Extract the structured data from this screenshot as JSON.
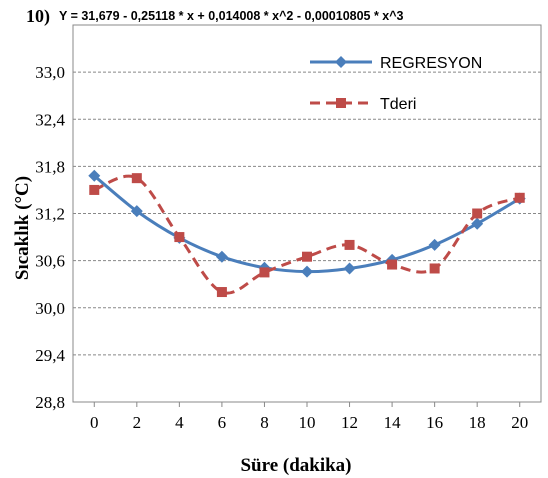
{
  "chart_data": {
    "type": "line",
    "label": "10)",
    "title": "Y = 31,679 - 0,25118 * x + 0,014008 * x^2 - 0,00010805 * x^3",
    "x_label": "Süre (dakika)",
    "y_label": "Sıcaklık (°C)",
    "x": [
      0,
      2,
      4,
      6,
      8,
      10,
      12,
      14,
      16,
      18,
      20
    ],
    "series": [
      {
        "name": "REGRESYON",
        "color": "#4a7ebb",
        "values": [
          31.68,
          31.23,
          30.89,
          30.65,
          30.51,
          30.46,
          30.5,
          30.61,
          30.8,
          31.07,
          31.39
        ]
      },
      {
        "name": "Tderi",
        "color": "#be4b48",
        "values": [
          31.5,
          31.65,
          30.9,
          30.2,
          30.45,
          30.65,
          30.8,
          30.55,
          30.5,
          31.2,
          31.4
        ]
      }
    ],
    "xlim": [
      -1,
      21
    ],
    "xticks": [
      0,
      2,
      4,
      6,
      8,
      10,
      12,
      14,
      16,
      18,
      20
    ],
    "ylim": [
      28.8,
      33.6
    ],
    "yticks": [
      {
        "value": 28.8,
        "label": "28,8"
      },
      {
        "value": 29.4,
        "label": "29,4"
      },
      {
        "value": 30.0,
        "label": "30,0"
      },
      {
        "value": 30.6,
        "label": "30,6"
      },
      {
        "value": 31.2,
        "label": "31,2"
      },
      {
        "value": 31.8,
        "label": "31,8"
      },
      {
        "value": 32.4,
        "label": "32,4"
      },
      {
        "value": 33.0,
        "label": "33,0"
      }
    ],
    "grid": true,
    "legend": "top-right"
  }
}
